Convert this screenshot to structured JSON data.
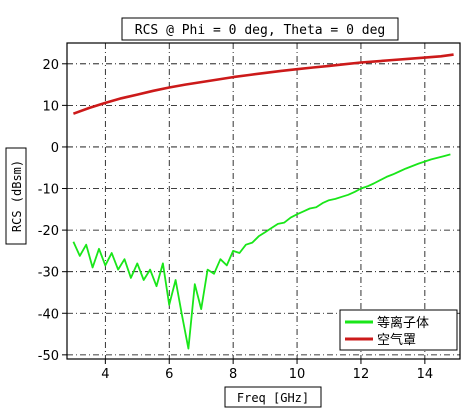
{
  "chart_data": {
    "type": "line",
    "title": "RCS @ Phi = 0 deg, Theta = 0 deg",
    "xlabel": "Freq [GHz]",
    "ylabel": "RCS (dBsm)",
    "xlim": [
      2.8,
      15.1
    ],
    "ylim": [
      -51,
      25
    ],
    "xticks": [
      4,
      6,
      8,
      10,
      12,
      14
    ],
    "yticks": [
      20,
      10,
      0,
      -10,
      -20,
      -30,
      -40,
      -50
    ],
    "grid": true,
    "legend_position": "bottom-right",
    "series": [
      {
        "name": "等离子体",
        "color": "#19e619",
        "x": [
          3.0,
          3.2,
          3.4,
          3.6,
          3.8,
          4.0,
          4.2,
          4.4,
          4.6,
          4.8,
          5.0,
          5.2,
          5.4,
          5.6,
          5.8,
          6.0,
          6.2,
          6.4,
          6.6,
          6.8,
          7.0,
          7.2,
          7.4,
          7.6,
          7.8,
          8.0,
          8.2,
          8.4,
          8.6,
          8.8,
          9.0,
          9.2,
          9.4,
          9.6,
          9.8,
          10.0,
          10.2,
          10.4,
          10.6,
          10.8,
          11.0,
          11.2,
          11.4,
          11.6,
          11.8,
          12.0,
          12.2,
          12.4,
          12.6,
          12.8,
          13.0,
          13.2,
          13.4,
          13.6,
          13.8,
          14.0,
          14.2,
          14.4,
          14.6,
          14.8
        ],
        "values": [
          -22.8,
          -26.2,
          -23.5,
          -29.0,
          -24.5,
          -28.5,
          -25.5,
          -29.5,
          -27.0,
          -31.5,
          -28.0,
          -32.0,
          -29.5,
          -33.5,
          -28.0,
          -38.0,
          -32.0,
          -40.5,
          -48.5,
          -33.0,
          -39.0,
          -29.5,
          -30.5,
          -27.0,
          -28.5,
          -25.0,
          -25.5,
          -23.5,
          -23.0,
          -21.5,
          -20.5,
          -19.5,
          -18.5,
          -18.2,
          -17.0,
          -16.2,
          -15.5,
          -14.8,
          -14.5,
          -13.5,
          -12.8,
          -12.5,
          -12.0,
          -11.5,
          -10.8,
          -10.0,
          -9.5,
          -8.8,
          -8.0,
          -7.2,
          -6.6,
          -5.9,
          -5.2,
          -4.6,
          -4.0,
          -3.5,
          -3.0,
          -2.6,
          -2.2,
          -1.8
        ]
      },
      {
        "name": "空气罩",
        "color": "#cc1a1a",
        "x": [
          3.0,
          3.5,
          4.0,
          4.5,
          5.0,
          5.5,
          6.0,
          6.5,
          7.0,
          7.5,
          8.0,
          8.5,
          9.0,
          9.5,
          10.0,
          10.5,
          11.0,
          11.5,
          12.0,
          12.5,
          13.0,
          13.5,
          14.0,
          14.5,
          14.9
        ],
        "values": [
          8.0,
          9.4,
          10.6,
          11.7,
          12.6,
          13.5,
          14.3,
          15.0,
          15.6,
          16.2,
          16.8,
          17.3,
          17.8,
          18.3,
          18.7,
          19.1,
          19.5,
          19.9,
          20.3,
          20.6,
          20.9,
          21.2,
          21.5,
          21.8,
          22.2
        ]
      }
    ]
  }
}
